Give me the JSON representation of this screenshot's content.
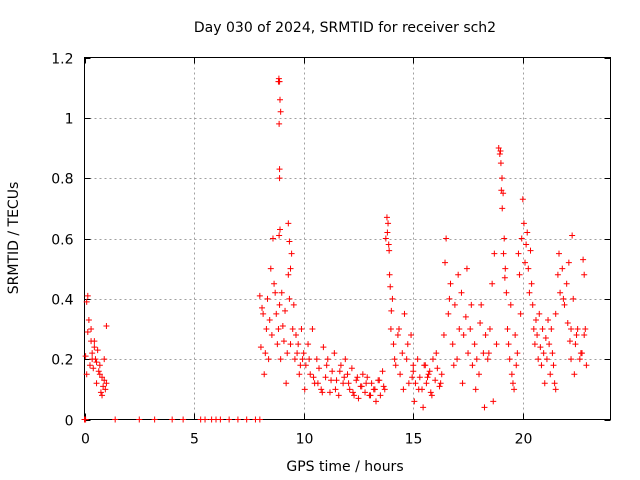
{
  "chart_data": {
    "type": "scatter",
    "title": "Day 030 of 2024, SRMTID for receiver sch2",
    "xlabel": "GPS time / hours",
    "ylabel": "SRMTID / TECUs",
    "xlim": [
      0,
      24
    ],
    "ylim": [
      0,
      1.2
    ],
    "xticks": [
      0,
      5,
      10,
      15,
      20
    ],
    "xtick_labels": [
      "0",
      "5",
      "10",
      "15",
      "20"
    ],
    "yticks": [
      0,
      0.2,
      0.4,
      0.6,
      0.8,
      1.0,
      1.2
    ],
    "ytick_labels": [
      "0",
      "0.2",
      "0.4",
      "0.6",
      "0.8",
      "1",
      "1.2"
    ],
    "grid": true,
    "marker": "+",
    "color": "#ff0000",
    "series": [
      {
        "name": "SRMTID",
        "x": [
          0.05,
          0.1,
          0.15,
          0.2,
          0.25,
          0.3,
          0.35,
          0.4,
          0.45,
          0.5,
          0.55,
          0.6,
          0.65,
          0.7,
          0.75,
          0.8,
          0.85,
          0.9,
          0.95,
          1.0,
          0.1,
          0.15,
          0.3,
          0.35,
          0.45,
          0.55,
          0.7,
          0.8,
          0.9,
          1.0,
          0.0,
          0.05,
          1.4,
          2.5,
          3.2,
          4.0,
          4.5,
          5.3,
          5.5,
          5.8,
          6.0,
          6.2,
          6.6,
          7.0,
          7.4,
          7.8,
          8.0,
          8.0,
          8.05,
          8.1,
          8.15,
          8.2,
          8.25,
          8.3,
          8.35,
          8.4,
          8.45,
          8.5,
          8.55,
          8.6,
          8.65,
          8.7,
          8.75,
          8.8,
          8.85,
          8.9,
          8.95,
          9.0,
          9.05,
          9.1,
          9.15,
          9.2,
          9.25,
          9.3,
          9.35,
          9.4,
          9.45,
          9.5,
          9.55,
          9.6,
          9.65,
          9.7,
          9.75,
          9.8,
          9.85,
          9.9,
          9.95,
          8.85,
          8.87,
          8.9,
          8.92,
          8.95,
          8.88,
          8.9,
          8.9,
          8.92,
          8.88,
          9.3,
          9.35,
          9.4,
          10.0,
          10.1,
          10.2,
          10.3,
          10.4,
          10.5,
          10.6,
          10.7,
          10.8,
          10.9,
          11.0,
          11.1,
          11.2,
          11.3,
          11.4,
          11.5,
          11.6,
          11.7,
          11.8,
          11.9,
          12.0,
          12.1,
          12.2,
          12.3,
          12.4,
          12.5,
          12.6,
          12.7,
          12.8,
          12.9,
          13.0,
          13.1,
          13.2,
          13.3,
          13.4,
          13.5,
          13.6,
          13.7,
          10.05,
          10.25,
          10.45,
          10.65,
          10.85,
          11.05,
          11.25,
          11.45,
          11.65,
          11.85,
          12.05,
          12.25,
          12.45,
          12.65,
          12.85,
          13.05,
          13.25,
          13.45,
          13.65,
          13.75,
          13.8,
          13.85,
          13.9,
          13.95,
          14.0,
          14.05,
          13.82,
          13.88,
          13.92,
          13.98,
          14.1,
          14.2,
          14.3,
          14.4,
          14.5,
          14.6,
          14.7,
          14.8,
          14.9,
          15.0,
          14.15,
          14.35,
          14.55,
          14.75,
          14.95,
          15.0,
          15.1,
          15.2,
          15.3,
          15.4,
          15.5,
          15.6,
          15.7,
          15.8,
          15.9,
          16.0,
          16.1,
          16.2,
          16.3,
          15.05,
          15.25,
          15.45,
          15.65,
          15.85,
          16.05,
          16.25,
          15.55,
          15.75,
          16.4,
          16.5,
          16.6,
          16.7,
          16.8,
          16.9,
          17.0,
          17.1,
          17.2,
          17.3,
          17.4,
          17.5,
          17.6,
          17.7,
          17.8,
          17.9,
          18.0,
          18.1,
          18.2,
          18.3,
          18.4,
          18.5,
          18.6,
          18.7,
          18.8,
          16.45,
          16.65,
          16.85,
          17.05,
          17.25,
          17.45,
          17.65,
          17.85,
          18.05,
          18.25,
          18.45,
          18.65,
          18.9,
          18.95,
          19.0,
          19.05,
          19.1,
          19.15,
          19.2,
          19.25,
          19.3,
          19.35,
          19.4,
          19.45,
          19.5,
          19.55,
          19.6,
          19.65,
          19.7,
          19.75,
          18.98,
          19.02,
          19.06,
          19.12,
          19.18,
          19.8,
          19.85,
          19.9,
          19.95,
          20.0,
          20.05,
          20.1,
          20.15,
          20.2,
          20.25,
          20.3,
          20.35,
          20.4,
          20.45,
          20.5,
          20.55,
          20.6,
          20.65,
          20.7,
          20.75,
          20.8,
          20.85,
          20.9,
          20.95,
          21.0,
          21.05,
          21.1,
          21.15,
          21.2,
          21.25,
          21.3,
          21.35,
          21.4,
          21.45,
          21.5,
          21.5,
          21.6,
          21.7,
          21.8,
          21.9,
          22.0,
          22.1,
          22.2,
          22.3,
          22.4,
          22.5,
          22.6,
          22.7,
          22.8,
          22.9,
          21.65,
          21.85,
          22.05,
          22.25,
          22.45,
          22.65,
          22.85,
          22.15,
          22.2,
          22.35,
          22.75,
          22.8
        ],
        "y": [
          0.21,
          0.39,
          0.41,
          0.33,
          0.18,
          0.26,
          0.22,
          0.17,
          0.24,
          0.2,
          0.12,
          0.23,
          0.16,
          0.18,
          0.09,
          0.14,
          0.11,
          0.13,
          0.1,
          0.12,
          0.15,
          0.29,
          0.3,
          0.2,
          0.26,
          0.19,
          0.15,
          0.08,
          0.2,
          0.31,
          0.0,
          0.0,
          0.0,
          0.0,
          0.0,
          0.0,
          0.0,
          0.0,
          0.0,
          0.0,
          0.0,
          0.0,
          0.0,
          0.0,
          0.0,
          0.0,
          0.0,
          0.41,
          0.24,
          0.37,
          0.35,
          0.15,
          0.22,
          0.3,
          0.4,
          0.2,
          0.33,
          0.5,
          0.28,
          0.6,
          0.45,
          0.42,
          0.35,
          0.25,
          0.3,
          0.38,
          0.2,
          0.42,
          0.31,
          0.26,
          0.36,
          0.12,
          0.22,
          0.48,
          0.4,
          0.25,
          0.55,
          0.3,
          0.38,
          0.2,
          0.28,
          0.22,
          0.25,
          0.15,
          0.18,
          0.3,
          0.2,
          1.12,
          1.13,
          1.12,
          1.06,
          1.02,
          0.98,
          0.83,
          0.8,
          0.63,
          0.61,
          0.65,
          0.59,
          0.5,
          0.22,
          0.18,
          0.25,
          0.15,
          0.3,
          0.12,
          0.2,
          0.17,
          0.1,
          0.24,
          0.14,
          0.2,
          0.09,
          0.16,
          0.22,
          0.13,
          0.08,
          0.18,
          0.12,
          0.2,
          0.15,
          0.1,
          0.17,
          0.08,
          0.13,
          0.07,
          0.11,
          0.15,
          0.09,
          0.14,
          0.08,
          0.12,
          0.1,
          0.06,
          0.13,
          0.08,
          0.16,
          0.1,
          0.1,
          0.2,
          0.14,
          0.12,
          0.09,
          0.18,
          0.13,
          0.1,
          0.16,
          0.14,
          0.12,
          0.09,
          0.14,
          0.11,
          0.12,
          0.08,
          0.1,
          0.13,
          0.11,
          0.6,
          0.67,
          0.65,
          0.56,
          0.44,
          0.36,
          0.4,
          0.62,
          0.58,
          0.48,
          0.3,
          0.25,
          0.18,
          0.28,
          0.15,
          0.22,
          0.35,
          0.2,
          0.12,
          0.28,
          0.18,
          0.2,
          0.3,
          0.1,
          0.25,
          0.14,
          0.16,
          0.12,
          0.2,
          0.14,
          0.1,
          0.18,
          0.12,
          0.15,
          0.09,
          0.2,
          0.13,
          0.17,
          0.11,
          0.15,
          0.06,
          0.1,
          0.04,
          0.14,
          0.08,
          0.22,
          0.12,
          0.18,
          0.16,
          0.28,
          0.6,
          0.35,
          0.45,
          0.25,
          0.38,
          0.2,
          0.3,
          0.42,
          0.28,
          0.34,
          0.22,
          0.3,
          0.18,
          0.25,
          0.2,
          0.15,
          0.38,
          0.22,
          0.28,
          0.2,
          0.3,
          0.45,
          0.55,
          0.25,
          0.52,
          0.4,
          0.18,
          0.48,
          0.12,
          0.5,
          0.38,
          0.1,
          0.32,
          0.04,
          0.22,
          0.06,
          0.9,
          0.88,
          0.85,
          0.8,
          0.75,
          0.6,
          0.5,
          0.42,
          0.3,
          0.25,
          0.2,
          0.38,
          0.15,
          0.12,
          0.1,
          0.28,
          0.18,
          0.22,
          0.89,
          0.76,
          0.7,
          0.55,
          0.47,
          0.55,
          0.48,
          0.35,
          0.6,
          0.73,
          0.65,
          0.52,
          0.58,
          0.62,
          0.5,
          0.42,
          0.56,
          0.45,
          0.38,
          0.3,
          0.25,
          0.33,
          0.28,
          0.2,
          0.35,
          0.24,
          0.18,
          0.3,
          0.22,
          0.12,
          0.27,
          0.2,
          0.33,
          0.25,
          0.15,
          0.3,
          0.22,
          0.18,
          0.12,
          0.1,
          0.35,
          0.48,
          0.42,
          0.5,
          0.38,
          0.45,
          0.52,
          0.3,
          0.4,
          0.25,
          0.3,
          0.2,
          0.22,
          0.28,
          0.18,
          0.55,
          0.4,
          0.32,
          0.61,
          0.28,
          0.22,
          0.3,
          0.26,
          0.2,
          0.15,
          0.53,
          0.48
        ],
        "pattern": "Dense vertical clusters of '+' markers; 0.0–1.0 h values ~0.1–0.4, zero points 0–8 h, main activity 8–23 h with spikes ~1.12 at 8.9 h, 0.67 at 13.9 h, 0.9 at 19.0 h"
      }
    ]
  }
}
